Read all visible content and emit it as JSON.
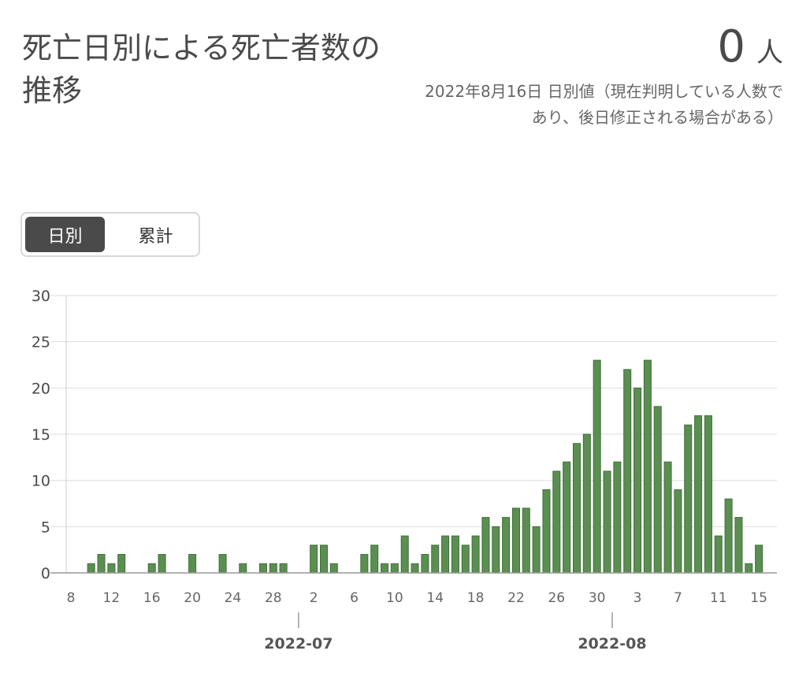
{
  "header": {
    "title": "死亡日別による死亡者数の推移",
    "value": "0",
    "unit": "人",
    "note": "2022年8月16日 日別値（現在判明している人数であり、後日修正される場合がある）"
  },
  "toggle": {
    "daily_label": "日別",
    "cumulative_label": "累計",
    "selected": "日別"
  },
  "colors": {
    "bar": "#5a8f51",
    "bar_stroke": "#3f6f38",
    "grid": "#dddddd",
    "text": "#4a4a4a"
  },
  "chart_data": {
    "type": "bar",
    "title": "",
    "xlabel": "",
    "ylabel": "",
    "ylim": [
      0,
      30
    ],
    "y_ticks": [
      "0",
      "5",
      "10",
      "15",
      "20",
      "25",
      "30"
    ],
    "x_ticks": [
      "8",
      "12",
      "16",
      "20",
      "24",
      "28",
      "2",
      "6",
      "10",
      "14",
      "18",
      "22",
      "26",
      "30",
      "3",
      "7",
      "11",
      "15"
    ],
    "month_labels": [
      "2022-07",
      "2022-08"
    ],
    "start_date": "2022-06-08",
    "x": [
      "2022-06-08",
      "2022-06-09",
      "2022-06-10",
      "2022-06-11",
      "2022-06-12",
      "2022-06-13",
      "2022-06-14",
      "2022-06-15",
      "2022-06-16",
      "2022-06-17",
      "2022-06-18",
      "2022-06-19",
      "2022-06-20",
      "2022-06-21",
      "2022-06-22",
      "2022-06-23",
      "2022-06-24",
      "2022-06-25",
      "2022-06-26",
      "2022-06-27",
      "2022-06-28",
      "2022-06-29",
      "2022-06-30",
      "2022-07-01",
      "2022-07-02",
      "2022-07-03",
      "2022-07-04",
      "2022-07-05",
      "2022-07-06",
      "2022-07-07",
      "2022-07-08",
      "2022-07-09",
      "2022-07-10",
      "2022-07-11",
      "2022-07-12",
      "2022-07-13",
      "2022-07-14",
      "2022-07-15",
      "2022-07-16",
      "2022-07-17",
      "2022-07-18",
      "2022-07-19",
      "2022-07-20",
      "2022-07-21",
      "2022-07-22",
      "2022-07-23",
      "2022-07-24",
      "2022-07-25",
      "2022-07-26",
      "2022-07-27",
      "2022-07-28",
      "2022-07-29",
      "2022-07-30",
      "2022-07-31",
      "2022-08-01",
      "2022-08-02",
      "2022-08-03",
      "2022-08-04",
      "2022-08-05",
      "2022-08-06",
      "2022-08-07",
      "2022-08-08",
      "2022-08-09",
      "2022-08-10",
      "2022-08-11",
      "2022-08-12",
      "2022-08-13",
      "2022-08-14",
      "2022-08-15"
    ],
    "values": [
      0,
      0,
      1,
      2,
      1,
      2,
      0,
      0,
      1,
      2,
      0,
      0,
      2,
      0,
      0,
      2,
      0,
      1,
      0,
      1,
      1,
      1,
      0,
      0,
      3,
      3,
      1,
      0,
      0,
      2,
      3,
      1,
      1,
      4,
      1,
      2,
      3,
      4,
      4,
      3,
      4,
      6,
      5,
      6,
      7,
      7,
      5,
      9,
      11,
      12,
      14,
      15,
      23,
      11,
      12,
      22,
      20,
      23,
      18,
      12,
      9,
      16,
      17,
      17,
      4,
      8,
      6,
      1,
      3
    ]
  }
}
